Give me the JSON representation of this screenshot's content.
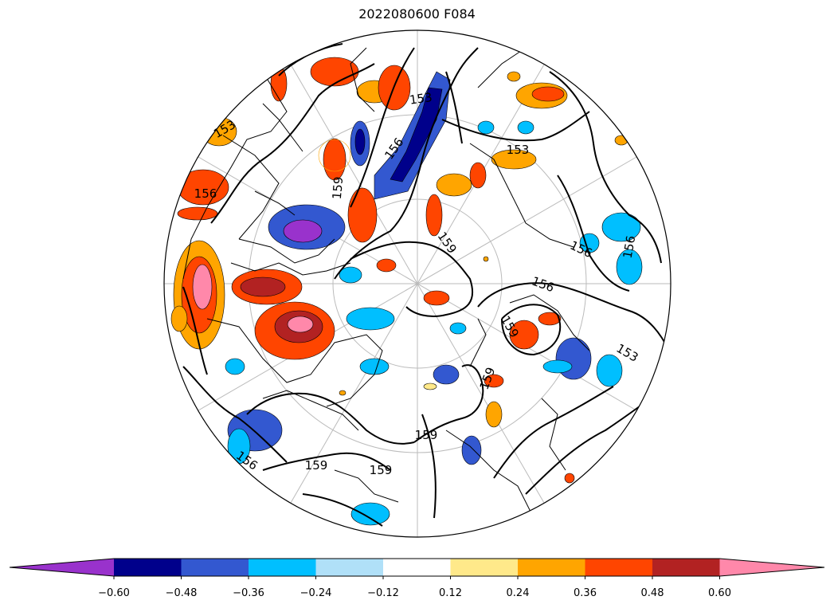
{
  "title": "2022080600 F084",
  "contour_labels": [
    {
      "text": "153"
    },
    {
      "text": "153"
    },
    {
      "text": "153"
    },
    {
      "text": "153"
    },
    {
      "text": "156"
    },
    {
      "text": "156"
    },
    {
      "text": "156"
    },
    {
      "text": "156"
    },
    {
      "text": "156"
    },
    {
      "text": "156"
    },
    {
      "text": "159"
    },
    {
      "text": "159"
    },
    {
      "text": "159"
    },
    {
      "text": "159"
    },
    {
      "text": "159"
    },
    {
      "text": "159"
    },
    {
      "text": "159"
    }
  ],
  "colorbar": {
    "colors": [
      "#9932cc",
      "#00008b",
      "#3358d0",
      "#00bfff",
      "#b0e0f8",
      "#ffffff",
      "#ffe98a",
      "#ffa500",
      "#ff4500",
      "#b22222",
      "#ff88aa"
    ],
    "ticks": [
      "−0.60",
      "−0.48",
      "−0.36",
      "−0.24",
      "−0.12",
      "0.12",
      "0.24",
      "0.36",
      "0.48",
      "0.60"
    ]
  }
}
